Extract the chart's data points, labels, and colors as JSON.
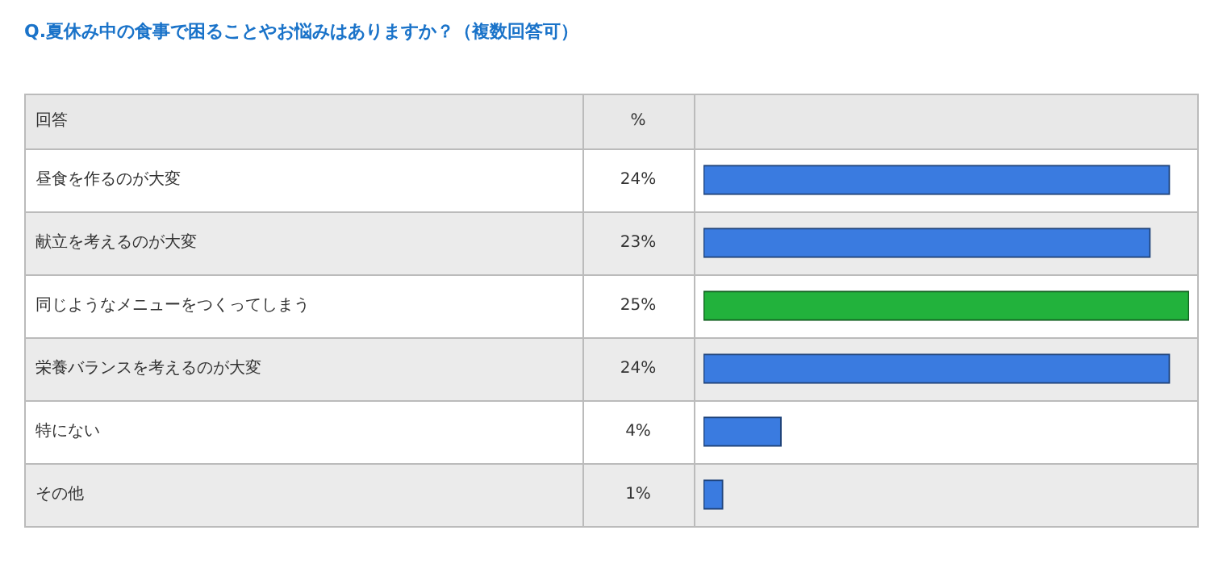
{
  "chart_data": {
    "type": "bar",
    "orientation": "horizontal",
    "title": "Q.夏休み中の食事で困ることやお悩みはありますか？（複数回答可）",
    "ylabel": "回答",
    "xlabel": "%",
    "categories": [
      "昼食を作るのが大変",
      "献立を考えるのが大変",
      "同じようなメニューをつくってしまう",
      "栄養バランスを考えるのが大変",
      "特にない",
      "その他"
    ],
    "values": [
      24,
      23,
      25,
      24,
      4,
      1
    ],
    "value_labels": [
      "24%",
      "23%",
      "25%",
      "24%",
      "4%",
      "1%"
    ],
    "colors": [
      "#3a7be0",
      "#3a7be0",
      "#22b23c",
      "#3a7be0",
      "#3a7be0",
      "#3a7be0"
    ],
    "legend": false
  }
}
